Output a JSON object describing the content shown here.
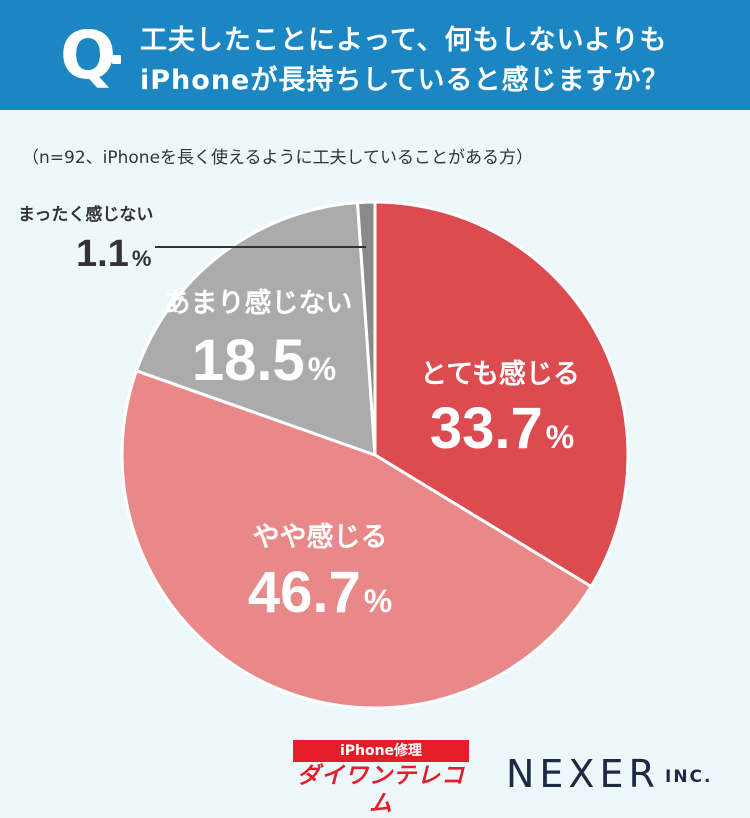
{
  "header": {
    "q_mark": "Q",
    "line1": "工夫したことによって、何もしないよりも",
    "line2": "iPhoneが長持ちしていると感じますか？"
  },
  "note": "（n=92、iPhoneを長く使えるように工夫していることがある方）",
  "chart_data": {
    "type": "pie",
    "slices": [
      {
        "label": "とても感じる",
        "value": 33.7,
        "color": "#dc4b4f"
      },
      {
        "label": "やや感じる",
        "value": 46.7,
        "color": "#e88888"
      },
      {
        "label": "あまり感じない",
        "value": 18.5,
        "color": "#ababab"
      },
      {
        "label": "まったく感じない",
        "value": 1.1,
        "color": "#8a8a8a"
      }
    ],
    "value_unit": "%",
    "start": "12 o'clock, clockwise"
  },
  "footer": {
    "logo_top": "iPhone修理",
    "logo_bottom": "ダイワンテレコム",
    "company": "NEXER",
    "company_suffix": "INC."
  }
}
